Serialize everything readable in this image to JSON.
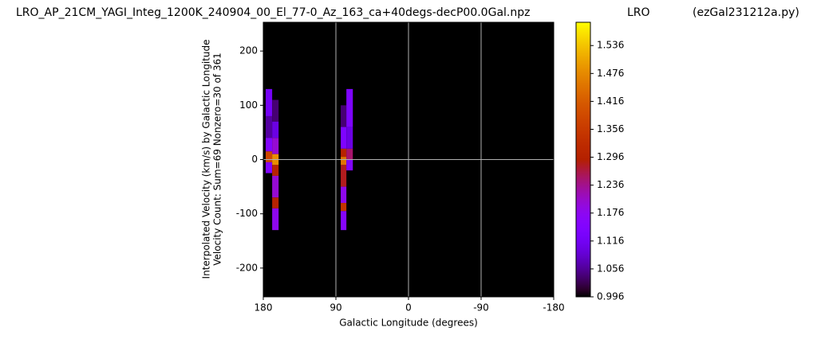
{
  "chart_data": {
    "type": "heatmap",
    "title_parts": [
      "LRO_AP_21CM_YAGI_Integ_1200K_240904_00_El_77-0_Az_163_ca+40degs-decP00.0Gal.npz",
      "LRO",
      "(ezGal231212a.py)"
    ],
    "xlabel": "Galactic Longitude (degrees)",
    "ylabel": [
      "Interpolated Velocity (km/s) by Galactic Longitude",
      "Velocity Count: Sum=69 Nonzero=30 of 361"
    ],
    "xlim": [
      180,
      -180
    ],
    "xticks": [
      180,
      90,
      0,
      -90,
      -180
    ],
    "ylim": [
      -253,
      253
    ],
    "yticks": [
      -200,
      -100,
      0,
      100,
      200
    ],
    "grid_x": [
      90,
      0,
      -90
    ],
    "grid_y": [
      0
    ],
    "clim": [
      0.996,
      1.586
    ],
    "cticks": [
      0.996,
      1.056,
      1.116,
      1.176,
      1.236,
      1.296,
      1.356,
      1.416,
      1.476,
      1.536
    ],
    "colormap": "gnuplot",
    "cells": [
      {
        "x": [
          177,
          169
        ],
        "y": [
          80,
          130
        ],
        "value": 1.12
      },
      {
        "x": [
          177,
          169
        ],
        "y": [
          40,
          80
        ],
        "value": 1.06
      },
      {
        "x": [
          177,
          169
        ],
        "y": [
          15,
          40
        ],
        "value": 1.15
      },
      {
        "x": [
          177,
          169
        ],
        "y": [
          -5,
          15
        ],
        "value": 1.38
      },
      {
        "x": [
          177,
          169
        ],
        "y": [
          -25,
          -5
        ],
        "value": 1.15
      },
      {
        "x": [
          169,
          161
        ],
        "y": [
          70,
          110
        ],
        "value": 1.04
      },
      {
        "x": [
          169,
          161
        ],
        "y": [
          40,
          70
        ],
        "value": 1.1
      },
      {
        "x": [
          169,
          161
        ],
        "y": [
          10,
          40
        ],
        "value": 1.2
      },
      {
        "x": [
          169,
          161
        ],
        "y": [
          -10,
          10
        ],
        "value": 1.48
      },
      {
        "x": [
          169,
          161
        ],
        "y": [
          -30,
          -10
        ],
        "value": 1.3
      },
      {
        "x": [
          169,
          161
        ],
        "y": [
          -70,
          -30
        ],
        "value": 1.2
      },
      {
        "x": [
          169,
          161
        ],
        "y": [
          -90,
          -70
        ],
        "value": 1.3
      },
      {
        "x": [
          169,
          161
        ],
        "y": [
          -130,
          -90
        ],
        "value": 1.18
      },
      {
        "x": [
          84,
          77
        ],
        "y": [
          60,
          100
        ],
        "value": 1.04
      },
      {
        "x": [
          84,
          77
        ],
        "y": [
          20,
          60
        ],
        "value": 1.14
      },
      {
        "x": [
          84,
          77
        ],
        "y": [
          5,
          20
        ],
        "value": 1.3
      },
      {
        "x": [
          84,
          77
        ],
        "y": [
          -10,
          5
        ],
        "value": 1.45
      },
      {
        "x": [
          84,
          77
        ],
        "y": [
          -50,
          -10
        ],
        "value": 1.28
      },
      {
        "x": [
          84,
          77
        ],
        "y": [
          -80,
          -50
        ],
        "value": 1.18
      },
      {
        "x": [
          84,
          77
        ],
        "y": [
          -95,
          -80
        ],
        "value": 1.34
      },
      {
        "x": [
          84,
          77
        ],
        "y": [
          -130,
          -95
        ],
        "value": 1.16
      },
      {
        "x": [
          77,
          69
        ],
        "y": [
          60,
          130
        ],
        "value": 1.14
      },
      {
        "x": [
          77,
          69
        ],
        "y": [
          20,
          60
        ],
        "value": 1.1
      },
      {
        "x": [
          77,
          69
        ],
        "y": [
          0,
          20
        ],
        "value": 1.25
      },
      {
        "x": [
          77,
          69
        ],
        "y": [
          -20,
          0
        ],
        "value": 1.15
      }
    ]
  }
}
